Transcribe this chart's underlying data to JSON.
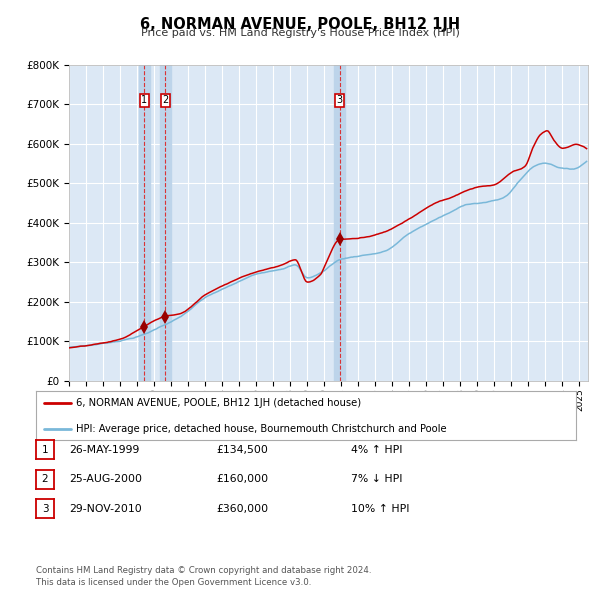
{
  "title": "6, NORMAN AVENUE, POOLE, BH12 1JH",
  "subtitle": "Price paid vs. HM Land Registry's House Price Index (HPI)",
  "legend_line1": "6, NORMAN AVENUE, POOLE, BH12 1JH (detached house)",
  "legend_line2": "HPI: Average price, detached house, Bournemouth Christchurch and Poole",
  "footer": "Contains HM Land Registry data © Crown copyright and database right 2024.\nThis data is licensed under the Open Government Licence v3.0.",
  "sale_dates": [
    "1999-05-26",
    "2000-08-25",
    "2010-11-29"
  ],
  "sale_prices": [
    134500,
    160000,
    360000
  ],
  "sale_labels": [
    "1",
    "2",
    "3"
  ],
  "sale_info": [
    {
      "label": "1",
      "date": "26-MAY-1999",
      "price": "£134,500",
      "change": "4% ↑ HPI"
    },
    {
      "label": "2",
      "date": "25-AUG-2000",
      "price": "£160,000",
      "change": "7% ↓ HPI"
    },
    {
      "label": "3",
      "date": "29-NOV-2010",
      "price": "£360,000",
      "change": "10% ↑ HPI"
    }
  ],
  "hpi_color": "#7ab8d9",
  "price_color": "#cc0000",
  "plot_bg_color": "#dce8f5",
  "grid_color": "#ffffff",
  "vline_color": "#dd2222",
  "vband_color": "#bdd4ea",
  "ylim": [
    0,
    800000
  ],
  "ytick_values": [
    0,
    100000,
    200000,
    300000,
    400000,
    500000,
    600000,
    700000,
    800000
  ],
  "ytick_labels": [
    "£0",
    "£100K",
    "£200K",
    "£300K",
    "£400K",
    "£500K",
    "£600K",
    "£700K",
    "£800K"
  ]
}
